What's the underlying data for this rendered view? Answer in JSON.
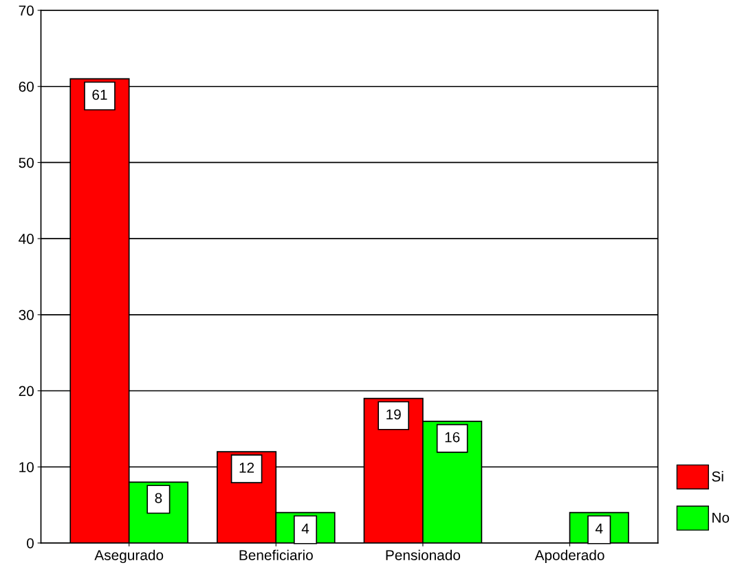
{
  "chart_data": {
    "type": "bar",
    "categories": [
      "Asegurado",
      "Beneficiario",
      "Pensionado",
      "Apoderado"
    ],
    "series": [
      {
        "name": "Si",
        "color": "#ff0000",
        "values": [
          61,
          12,
          19,
          null
        ],
        "value_labels": [
          "61",
          "12",
          "19",
          null
        ]
      },
      {
        "name": "No",
        "color": "#00ff00",
        "values": [
          8,
          4,
          16,
          4
        ],
        "value_labels": [
          "8",
          "4",
          "16",
          "4"
        ]
      }
    ],
    "ylim": [
      0,
      70
    ],
    "yticks": [
      0,
      10,
      20,
      30,
      40,
      50,
      60,
      70
    ],
    "grid": "y",
    "legend": "bottom right"
  }
}
